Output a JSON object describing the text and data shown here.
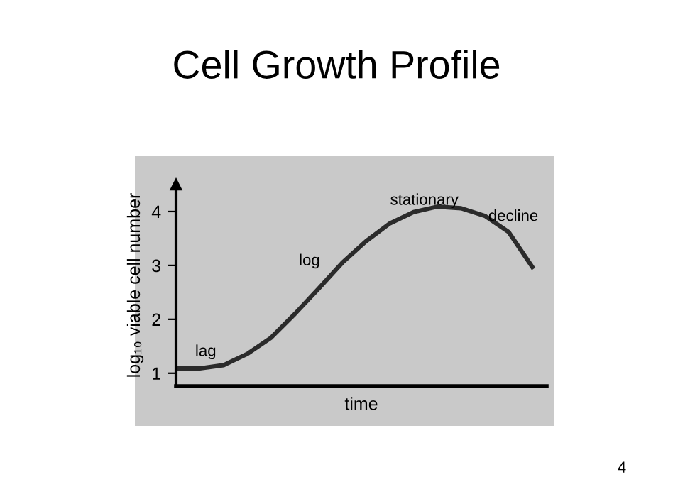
{
  "chart_data": {
    "type": "line",
    "title": "Cell Growth Profile",
    "xlabel": "time",
    "ylabel": "log₁₀ viable cell number",
    "categories": [
      null,
      null,
      null,
      null,
      null,
      null,
      null,
      null,
      null,
      null,
      null,
      null,
      null,
      null,
      null,
      null
    ],
    "series": [
      {
        "color": "#2b2b2b",
        "values": [
          1.09,
          1.09,
          1.15,
          1.36,
          1.66,
          2.1,
          2.57,
          3.05,
          3.45,
          3.78,
          3.99,
          4.09,
          4.06,
          3.92,
          3.62,
          2.97
        ]
      }
    ],
    "ylim": [
      0.76,
      4.5
    ],
    "yticks": [
      1,
      2,
      3,
      4
    ],
    "grid": false,
    "legend": false,
    "marker": "none",
    "line_style": "solid",
    "annotations": [
      "lag",
      "log",
      "stationary",
      "decline",
      "4"
    ]
  }
}
